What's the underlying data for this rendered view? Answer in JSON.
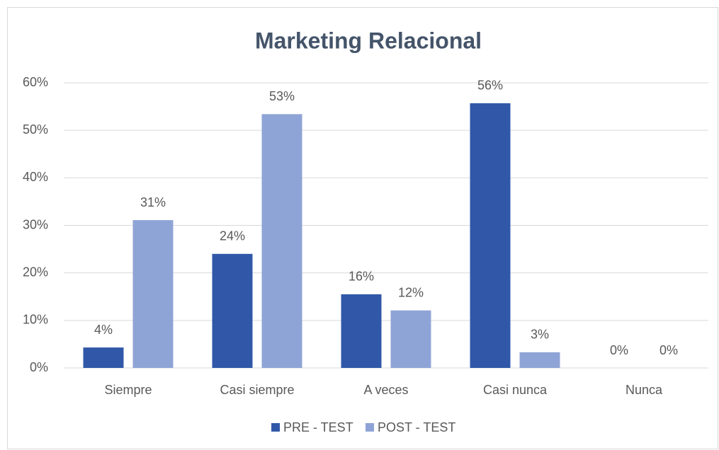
{
  "chart_data": {
    "type": "bar",
    "title": "Marketing Relacional",
    "categories": [
      "Siempre",
      "Casi siempre",
      "A veces",
      "Casi nunca",
      "Nunca"
    ],
    "series": [
      {
        "name": "PRE - TEST",
        "color": "#3158a8",
        "values": [
          4.3,
          24,
          15.5,
          55.7,
          0
        ],
        "value_labels": [
          "4%",
          "24%",
          "16%",
          "56%",
          "0%"
        ]
      },
      {
        "name": "POST - TEST",
        "color": "#8fa4d6",
        "values": [
          31.1,
          53.4,
          12.1,
          3.3,
          0
        ],
        "value_labels": [
          "31%",
          "53%",
          "12%",
          "3%",
          "0%"
        ]
      }
    ],
    "ylim": [
      0,
      60
    ],
    "yticks": [
      {
        "value": 0,
        "label": "0%"
      },
      {
        "value": 10,
        "label": "10%"
      },
      {
        "value": 20,
        "label": "20%"
      },
      {
        "value": 30,
        "label": "30%"
      },
      {
        "value": 40,
        "label": "40%"
      },
      {
        "value": 50,
        "label": "50%"
      },
      {
        "value": 60,
        "label": "60%"
      }
    ],
    "grid": true,
    "legend": "bottom"
  }
}
